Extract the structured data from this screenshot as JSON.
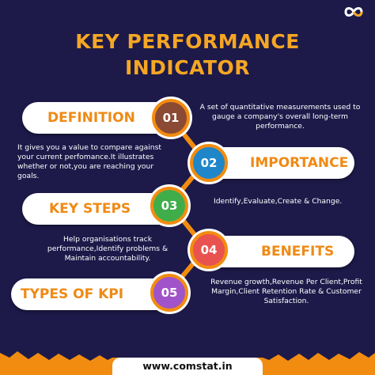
{
  "brand_colors": {
    "background": "#1d1a4a",
    "accent": "#f5a623",
    "orange": "#ef8a14"
  },
  "logo": {
    "icon": "infinity-logo-icon"
  },
  "title": {
    "line1": "KEY PERFORMANCE",
    "line2": "INDICATOR"
  },
  "steps": [
    {
      "number": "01",
      "label": "DEFINITION",
      "color": "#8a4a34",
      "description": "A set of quantitative measurements used to gauge a company's overall long-term performance."
    },
    {
      "number": "02",
      "label": "IMPORTANCE",
      "color": "#1f86c9",
      "description": "It gives you a value to compare against your current perfomance.It illustrates whether or not,you are reaching your goals."
    },
    {
      "number": "03",
      "label": "KEY STEPS",
      "color": "#3fae4a",
      "description": "Identify,Evaluate,Create & Change."
    },
    {
      "number": "04",
      "label": "BENEFITS",
      "color": "#e9534f",
      "description": "Help organisations track performance,Identify problems & Maintain accountability."
    },
    {
      "number": "05",
      "label": "TYPES OF KPI",
      "color": "#a153c9",
      "description": "Revenue growth,Revenue Per Client,Profit Margin,Client Retention Rate & Customer Satisfaction."
    }
  ],
  "footer": {
    "url": "www.comstat.in"
  }
}
